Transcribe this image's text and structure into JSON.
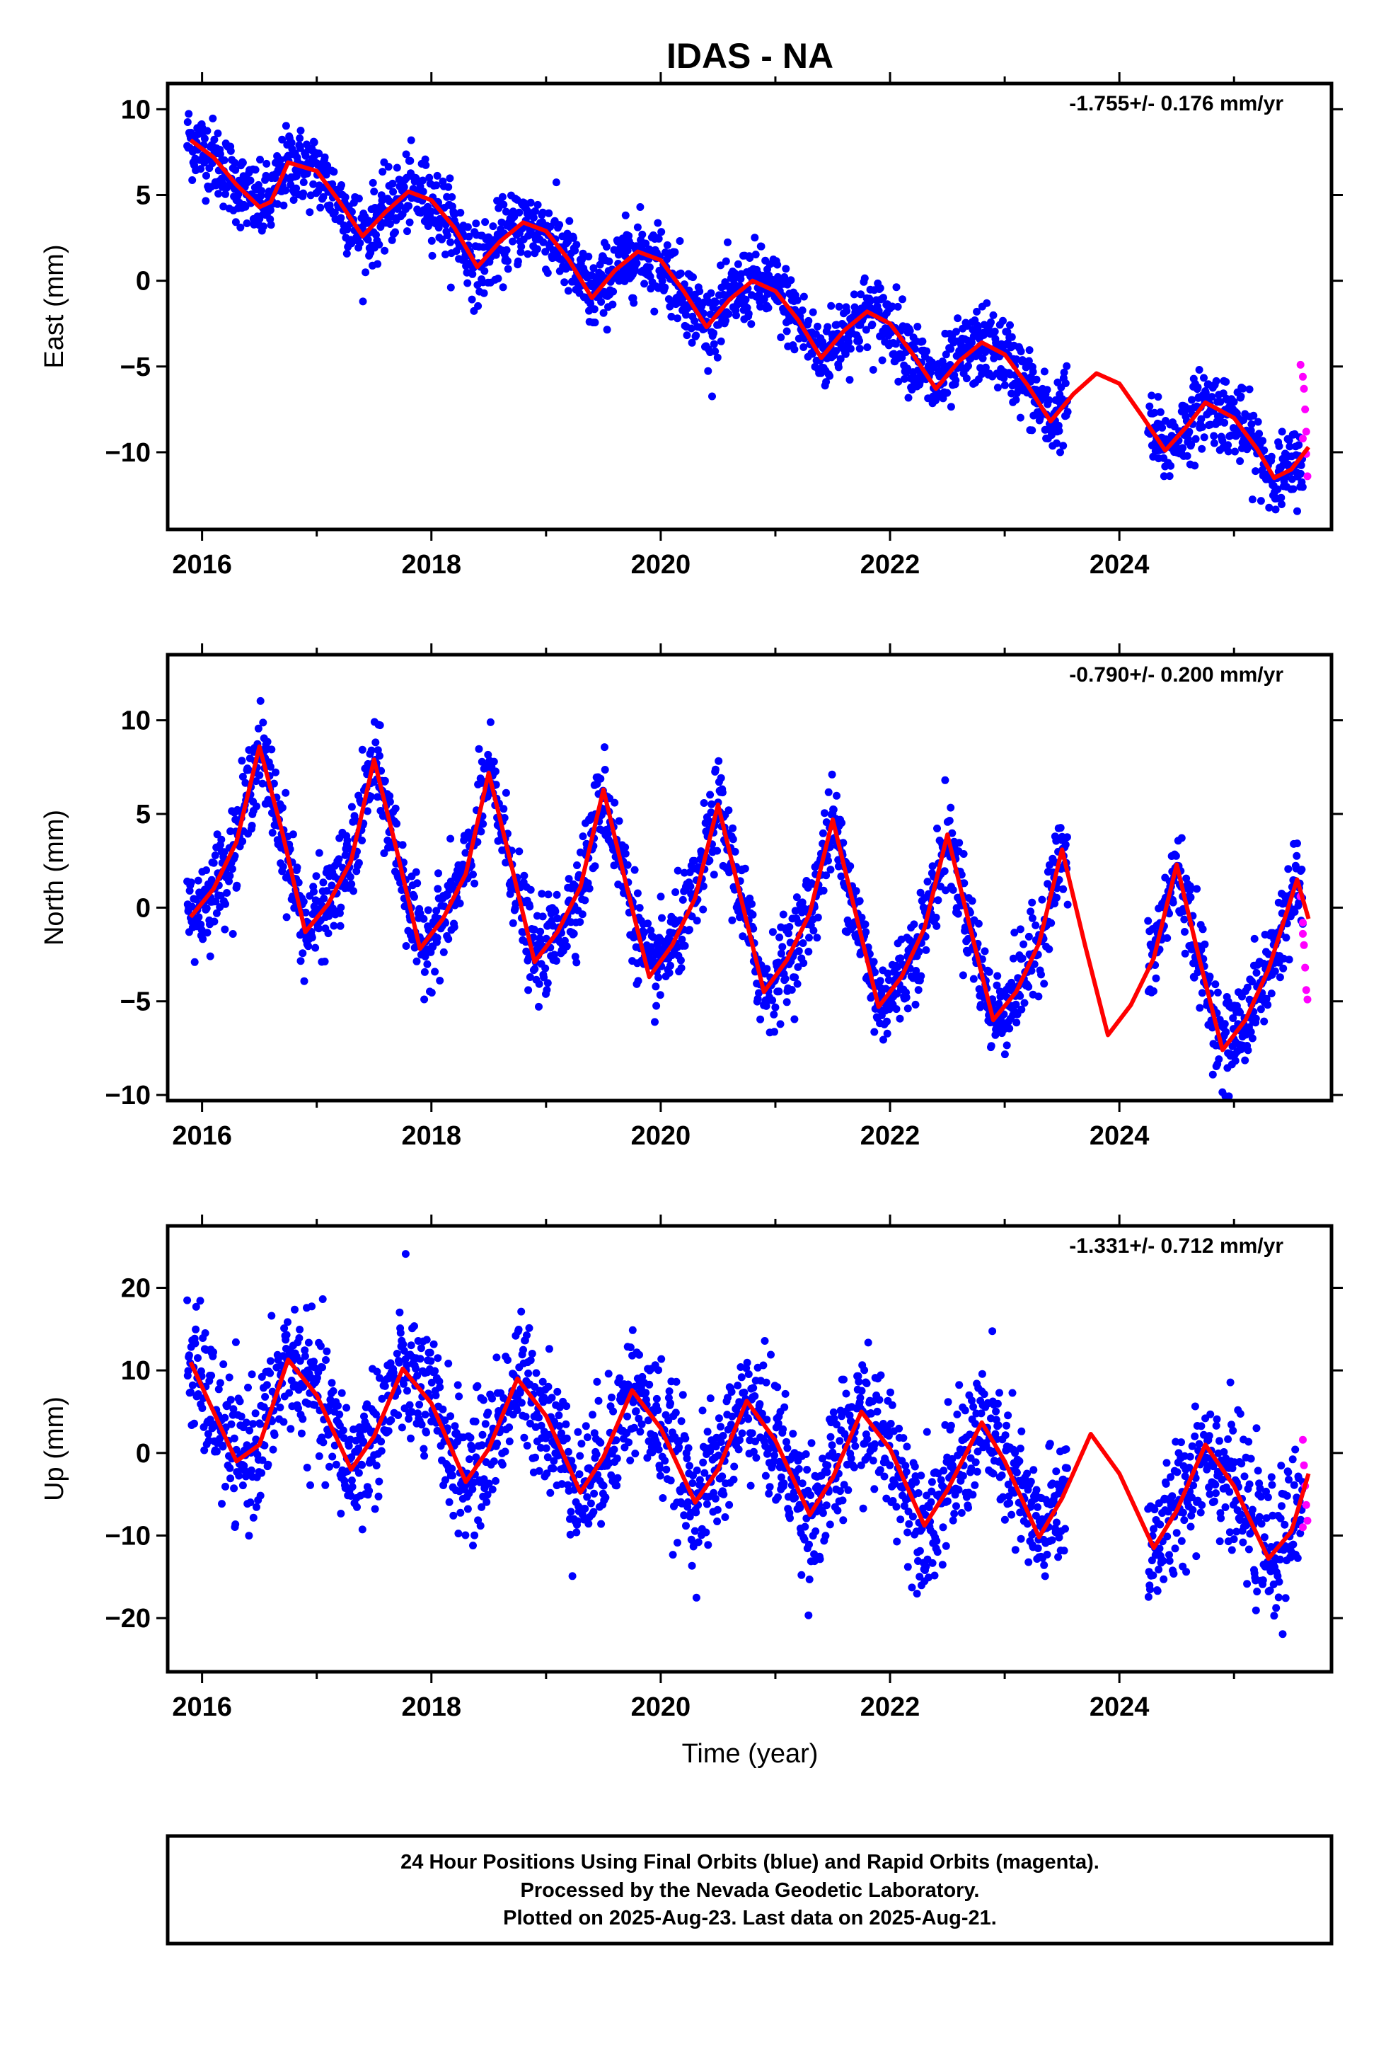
{
  "title": "IDAS - NA",
  "xlabel": "Time (year)",
  "footer": {
    "line1": "24 Hour Positions Using Final Orbits (blue) and Rapid Orbits (magenta).",
    "line2": "Processed by the Nevada Geodetic Laboratory.",
    "line3": "Plotted on 2025-Aug-23. Last data on 2025-Aug-21."
  },
  "colors": {
    "final": "#0000ff",
    "rapid": "#ff00ff",
    "model": "#ff0000",
    "frame": "#000000"
  },
  "chart_data": [
    {
      "type": "scatter",
      "id": "east",
      "ylabel": "East (mm)",
      "rate_text": "-1.755+/- 0.176 mm/yr",
      "xlim": [
        2015.7,
        2025.85
      ],
      "ylim": [
        -14.5,
        11.5
      ],
      "xticks": [
        2016,
        2018,
        2020,
        2022,
        2024
      ],
      "yticks": [
        10,
        5,
        0,
        -5,
        -10
      ],
      "ytick_labels": [
        "10",
        "5",
        "0",
        "−5",
        "−10"
      ],
      "grid": false,
      "model": {
        "series": "model fit (red)",
        "points": [
          [
            2015.9,
            8.2
          ],
          [
            2016.1,
            7.2
          ],
          [
            2016.3,
            5.6
          ],
          [
            2016.5,
            4.3
          ],
          [
            2016.6,
            4.6
          ],
          [
            2016.75,
            6.9
          ],
          [
            2017.0,
            6.4
          ],
          [
            2017.2,
            4.6
          ],
          [
            2017.4,
            2.6
          ],
          [
            2017.6,
            4.0
          ],
          [
            2017.8,
            5.2
          ],
          [
            2018.0,
            4.7
          ],
          [
            2018.2,
            3.1
          ],
          [
            2018.4,
            0.8
          ],
          [
            2018.6,
            2.3
          ],
          [
            2018.8,
            3.4
          ],
          [
            2019.0,
            2.9
          ],
          [
            2019.2,
            1.2
          ],
          [
            2019.4,
            -1.0
          ],
          [
            2019.6,
            0.6
          ],
          [
            2019.8,
            1.7
          ],
          [
            2020.0,
            1.2
          ],
          [
            2020.2,
            -0.6
          ],
          [
            2020.4,
            -2.7
          ],
          [
            2020.6,
            -1.1
          ],
          [
            2020.8,
            0.0
          ],
          [
            2021.0,
            -0.6
          ],
          [
            2021.2,
            -2.3
          ],
          [
            2021.4,
            -4.5
          ],
          [
            2021.6,
            -2.9
          ],
          [
            2021.8,
            -1.8
          ],
          [
            2022.0,
            -2.5
          ],
          [
            2022.2,
            -4.3
          ],
          [
            2022.4,
            -6.3
          ],
          [
            2022.6,
            -4.7
          ],
          [
            2022.8,
            -3.6
          ],
          [
            2023.0,
            -4.3
          ],
          [
            2023.2,
            -6.1
          ],
          [
            2023.4,
            -8.2
          ],
          [
            2023.6,
            -6.6
          ],
          [
            2023.8,
            -5.4
          ],
          [
            2024.0,
            -6.0
          ],
          [
            2024.2,
            -7.9
          ],
          [
            2024.4,
            -9.9
          ],
          [
            2024.6,
            -8.4
          ],
          [
            2024.75,
            -7.1
          ],
          [
            2025.0,
            -8.0
          ],
          [
            2025.2,
            -9.8
          ],
          [
            2025.35,
            -11.5
          ],
          [
            2025.5,
            -11.0
          ],
          [
            2025.65,
            -9.7
          ]
        ]
      },
      "final_orbits": {
        "series": "Final Orbits (blue)",
        "segments": [
          [
            2015.87,
            2023.55
          ],
          [
            2024.25,
            2025.6
          ]
        ],
        "scatter_mm": 1.1
      },
      "rapid_orbits": {
        "series": "Rapid Orbits (magenta)",
        "points": [
          [
            2025.58,
            -4.9
          ],
          [
            2025.6,
            -5.6
          ],
          [
            2025.61,
            -6.3
          ],
          [
            2025.62,
            -7.5
          ],
          [
            2025.63,
            -8.8
          ],
          [
            2025.63,
            -10.1
          ],
          [
            2025.64,
            -11.4
          ],
          [
            2025.6,
            -9.2
          ]
        ]
      }
    },
    {
      "type": "scatter",
      "id": "north",
      "ylabel": "North (mm)",
      "rate_text": "-0.790+/- 0.200 mm/yr",
      "xlim": [
        2015.7,
        2025.85
      ],
      "ylim": [
        -10.3,
        13.5
      ],
      "xticks": [
        2016,
        2018,
        2020,
        2022,
        2024
      ],
      "yticks": [
        10,
        5,
        0,
        -5,
        -10
      ],
      "ytick_labels": [
        "10",
        "5",
        "0",
        "−5",
        "−10"
      ],
      "grid": false,
      "model": {
        "series": "model fit (red)",
        "points": [
          [
            2015.9,
            -0.5
          ],
          [
            2016.1,
            1.0
          ],
          [
            2016.3,
            3.5
          ],
          [
            2016.5,
            8.6
          ],
          [
            2016.7,
            4.0
          ],
          [
            2016.9,
            -1.3
          ],
          [
            2017.1,
            0.2
          ],
          [
            2017.3,
            2.5
          ],
          [
            2017.5,
            7.9
          ],
          [
            2017.7,
            3.0
          ],
          [
            2017.9,
            -2.2
          ],
          [
            2018.1,
            -0.6
          ],
          [
            2018.3,
            1.8
          ],
          [
            2018.5,
            7.2
          ],
          [
            2018.7,
            2.2
          ],
          [
            2018.9,
            -2.9
          ],
          [
            2019.1,
            -1.3
          ],
          [
            2019.3,
            1.1
          ],
          [
            2019.5,
            6.3
          ],
          [
            2019.7,
            1.2
          ],
          [
            2019.9,
            -3.7
          ],
          [
            2020.1,
            -2.0
          ],
          [
            2020.3,
            0.5
          ],
          [
            2020.5,
            5.5
          ],
          [
            2020.7,
            0.5
          ],
          [
            2020.9,
            -4.5
          ],
          [
            2021.1,
            -2.8
          ],
          [
            2021.3,
            -0.3
          ],
          [
            2021.5,
            4.7
          ],
          [
            2021.7,
            -0.3
          ],
          [
            2021.9,
            -5.3
          ],
          [
            2022.1,
            -3.7
          ],
          [
            2022.3,
            -1.1
          ],
          [
            2022.5,
            3.9
          ],
          [
            2022.7,
            -1.1
          ],
          [
            2022.9,
            -6.0
          ],
          [
            2023.1,
            -4.5
          ],
          [
            2023.3,
            -1.9
          ],
          [
            2023.5,
            3.1
          ],
          [
            2023.7,
            -2.0
          ],
          [
            2023.9,
            -6.8
          ],
          [
            2024.1,
            -5.2
          ],
          [
            2024.3,
            -2.7
          ],
          [
            2024.5,
            2.3
          ],
          [
            2024.7,
            -2.8
          ],
          [
            2024.9,
            -7.6
          ],
          [
            2025.1,
            -6.0
          ],
          [
            2025.3,
            -3.3
          ],
          [
            2025.55,
            1.5
          ],
          [
            2025.65,
            -0.6
          ]
        ]
      },
      "final_orbits": {
        "series": "Final Orbits (blue)",
        "segments": [
          [
            2015.87,
            2023.55
          ],
          [
            2024.25,
            2025.6
          ]
        ],
        "scatter_mm": 1.2
      },
      "rapid_orbits": {
        "series": "Rapid Orbits (magenta)",
        "points": [
          [
            2025.58,
            0.6
          ],
          [
            2025.6,
            -0.8
          ],
          [
            2025.61,
            -2.0
          ],
          [
            2025.62,
            -3.2
          ],
          [
            2025.63,
            -4.4
          ],
          [
            2025.64,
            -4.9
          ],
          [
            2025.6,
            -1.4
          ]
        ]
      }
    },
    {
      "type": "scatter",
      "id": "up",
      "ylabel": "Up (mm)",
      "rate_text": "-1.331+/- 0.712 mm/yr",
      "xlim": [
        2015.7,
        2025.85
      ],
      "ylim": [
        -26.5,
        27.5
      ],
      "xticks": [
        2016,
        2018,
        2020,
        2022,
        2024
      ],
      "yticks": [
        20,
        10,
        0,
        -10,
        -20
      ],
      "ytick_labels": [
        "20",
        "10",
        "0",
        "−10",
        "−20"
      ],
      "grid": false,
      "model": {
        "series": "model fit (red)",
        "points": [
          [
            2015.9,
            11.0
          ],
          [
            2016.1,
            5.0
          ],
          [
            2016.3,
            -1.0
          ],
          [
            2016.5,
            1.0
          ],
          [
            2016.75,
            11.3
          ],
          [
            2017.0,
            7.0
          ],
          [
            2017.3,
            -2.0
          ],
          [
            2017.5,
            2.0
          ],
          [
            2017.75,
            10.2
          ],
          [
            2018.0,
            6.0
          ],
          [
            2018.3,
            -3.5
          ],
          [
            2018.5,
            0.5
          ],
          [
            2018.75,
            9.0
          ],
          [
            2019.0,
            4.5
          ],
          [
            2019.3,
            -4.8
          ],
          [
            2019.5,
            -0.5
          ],
          [
            2019.75,
            7.6
          ],
          [
            2020.0,
            3.0
          ],
          [
            2020.3,
            -6.0
          ],
          [
            2020.5,
            -2.0
          ],
          [
            2020.75,
            6.3
          ],
          [
            2021.0,
            1.5
          ],
          [
            2021.3,
            -7.5
          ],
          [
            2021.5,
            -3.0
          ],
          [
            2021.75,
            5.0
          ],
          [
            2022.0,
            0.5
          ],
          [
            2022.3,
            -8.8
          ],
          [
            2022.5,
            -4.5
          ],
          [
            2022.8,
            3.7
          ],
          [
            2023.0,
            -1.0
          ],
          [
            2023.3,
            -10.2
          ],
          [
            2023.5,
            -5.5
          ],
          [
            2023.75,
            2.3
          ],
          [
            2024.0,
            -2.5
          ],
          [
            2024.3,
            -11.5
          ],
          [
            2024.5,
            -7.0
          ],
          [
            2024.75,
            1.0
          ],
          [
            2025.0,
            -4.0
          ],
          [
            2025.3,
            -12.8
          ],
          [
            2025.5,
            -9.5
          ],
          [
            2025.65,
            -2.5
          ]
        ]
      },
      "final_orbits": {
        "series": "Final Orbits (blue)",
        "segments": [
          [
            2015.87,
            2023.55
          ],
          [
            2024.25,
            2025.6
          ]
        ],
        "scatter_mm": 4.0
      },
      "rapid_orbits": {
        "series": "Rapid Orbits (magenta)",
        "points": [
          [
            2025.6,
            1.6
          ],
          [
            2025.61,
            -1.5
          ],
          [
            2025.62,
            -4.0
          ],
          [
            2025.63,
            -6.3
          ],
          [
            2025.64,
            -8.2
          ],
          [
            2025.6,
            -9.0
          ]
        ]
      }
    }
  ]
}
